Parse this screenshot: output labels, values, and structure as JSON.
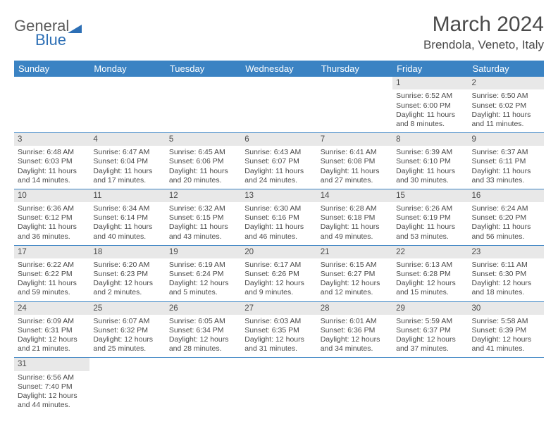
{
  "logo": {
    "text1": "General",
    "text2": "Blue"
  },
  "title": "March 2024",
  "location": "Brendola, Veneto, Italy",
  "colors": {
    "header_bg": "#3b83c3",
    "header_text": "#ffffff",
    "daynum_bg": "#e8e8e8",
    "text": "#4a4a4a",
    "row_border": "#3b83c3",
    "logo_accent": "#2d6fb5"
  },
  "day_names": [
    "Sunday",
    "Monday",
    "Tuesday",
    "Wednesday",
    "Thursday",
    "Friday",
    "Saturday"
  ],
  "weeks": [
    [
      {
        "n": "",
        "l": [
          "",
          "",
          "",
          ""
        ]
      },
      {
        "n": "",
        "l": [
          "",
          "",
          "",
          ""
        ]
      },
      {
        "n": "",
        "l": [
          "",
          "",
          "",
          ""
        ]
      },
      {
        "n": "",
        "l": [
          "",
          "",
          "",
          ""
        ]
      },
      {
        "n": "",
        "l": [
          "",
          "",
          "",
          ""
        ]
      },
      {
        "n": "1",
        "l": [
          "Sunrise: 6:52 AM",
          "Sunset: 6:00 PM",
          "Daylight: 11 hours",
          "and 8 minutes."
        ]
      },
      {
        "n": "2",
        "l": [
          "Sunrise: 6:50 AM",
          "Sunset: 6:02 PM",
          "Daylight: 11 hours",
          "and 11 minutes."
        ]
      }
    ],
    [
      {
        "n": "3",
        "l": [
          "Sunrise: 6:48 AM",
          "Sunset: 6:03 PM",
          "Daylight: 11 hours",
          "and 14 minutes."
        ]
      },
      {
        "n": "4",
        "l": [
          "Sunrise: 6:47 AM",
          "Sunset: 6:04 PM",
          "Daylight: 11 hours",
          "and 17 minutes."
        ]
      },
      {
        "n": "5",
        "l": [
          "Sunrise: 6:45 AM",
          "Sunset: 6:06 PM",
          "Daylight: 11 hours",
          "and 20 minutes."
        ]
      },
      {
        "n": "6",
        "l": [
          "Sunrise: 6:43 AM",
          "Sunset: 6:07 PM",
          "Daylight: 11 hours",
          "and 24 minutes."
        ]
      },
      {
        "n": "7",
        "l": [
          "Sunrise: 6:41 AM",
          "Sunset: 6:08 PM",
          "Daylight: 11 hours",
          "and 27 minutes."
        ]
      },
      {
        "n": "8",
        "l": [
          "Sunrise: 6:39 AM",
          "Sunset: 6:10 PM",
          "Daylight: 11 hours",
          "and 30 minutes."
        ]
      },
      {
        "n": "9",
        "l": [
          "Sunrise: 6:37 AM",
          "Sunset: 6:11 PM",
          "Daylight: 11 hours",
          "and 33 minutes."
        ]
      }
    ],
    [
      {
        "n": "10",
        "l": [
          "Sunrise: 6:36 AM",
          "Sunset: 6:12 PM",
          "Daylight: 11 hours",
          "and 36 minutes."
        ]
      },
      {
        "n": "11",
        "l": [
          "Sunrise: 6:34 AM",
          "Sunset: 6:14 PM",
          "Daylight: 11 hours",
          "and 40 minutes."
        ]
      },
      {
        "n": "12",
        "l": [
          "Sunrise: 6:32 AM",
          "Sunset: 6:15 PM",
          "Daylight: 11 hours",
          "and 43 minutes."
        ]
      },
      {
        "n": "13",
        "l": [
          "Sunrise: 6:30 AM",
          "Sunset: 6:16 PM",
          "Daylight: 11 hours",
          "and 46 minutes."
        ]
      },
      {
        "n": "14",
        "l": [
          "Sunrise: 6:28 AM",
          "Sunset: 6:18 PM",
          "Daylight: 11 hours",
          "and 49 minutes."
        ]
      },
      {
        "n": "15",
        "l": [
          "Sunrise: 6:26 AM",
          "Sunset: 6:19 PM",
          "Daylight: 11 hours",
          "and 53 minutes."
        ]
      },
      {
        "n": "16",
        "l": [
          "Sunrise: 6:24 AM",
          "Sunset: 6:20 PM",
          "Daylight: 11 hours",
          "and 56 minutes."
        ]
      }
    ],
    [
      {
        "n": "17",
        "l": [
          "Sunrise: 6:22 AM",
          "Sunset: 6:22 PM",
          "Daylight: 11 hours",
          "and 59 minutes."
        ]
      },
      {
        "n": "18",
        "l": [
          "Sunrise: 6:20 AM",
          "Sunset: 6:23 PM",
          "Daylight: 12 hours",
          "and 2 minutes."
        ]
      },
      {
        "n": "19",
        "l": [
          "Sunrise: 6:19 AM",
          "Sunset: 6:24 PM",
          "Daylight: 12 hours",
          "and 5 minutes."
        ]
      },
      {
        "n": "20",
        "l": [
          "Sunrise: 6:17 AM",
          "Sunset: 6:26 PM",
          "Daylight: 12 hours",
          "and 9 minutes."
        ]
      },
      {
        "n": "21",
        "l": [
          "Sunrise: 6:15 AM",
          "Sunset: 6:27 PM",
          "Daylight: 12 hours",
          "and 12 minutes."
        ]
      },
      {
        "n": "22",
        "l": [
          "Sunrise: 6:13 AM",
          "Sunset: 6:28 PM",
          "Daylight: 12 hours",
          "and 15 minutes."
        ]
      },
      {
        "n": "23",
        "l": [
          "Sunrise: 6:11 AM",
          "Sunset: 6:30 PM",
          "Daylight: 12 hours",
          "and 18 minutes."
        ]
      }
    ],
    [
      {
        "n": "24",
        "l": [
          "Sunrise: 6:09 AM",
          "Sunset: 6:31 PM",
          "Daylight: 12 hours",
          "and 21 minutes."
        ]
      },
      {
        "n": "25",
        "l": [
          "Sunrise: 6:07 AM",
          "Sunset: 6:32 PM",
          "Daylight: 12 hours",
          "and 25 minutes."
        ]
      },
      {
        "n": "26",
        "l": [
          "Sunrise: 6:05 AM",
          "Sunset: 6:34 PM",
          "Daylight: 12 hours",
          "and 28 minutes."
        ]
      },
      {
        "n": "27",
        "l": [
          "Sunrise: 6:03 AM",
          "Sunset: 6:35 PM",
          "Daylight: 12 hours",
          "and 31 minutes."
        ]
      },
      {
        "n": "28",
        "l": [
          "Sunrise: 6:01 AM",
          "Sunset: 6:36 PM",
          "Daylight: 12 hours",
          "and 34 minutes."
        ]
      },
      {
        "n": "29",
        "l": [
          "Sunrise: 5:59 AM",
          "Sunset: 6:37 PM",
          "Daylight: 12 hours",
          "and 37 minutes."
        ]
      },
      {
        "n": "30",
        "l": [
          "Sunrise: 5:58 AM",
          "Sunset: 6:39 PM",
          "Daylight: 12 hours",
          "and 41 minutes."
        ]
      }
    ],
    [
      {
        "n": "31",
        "l": [
          "Sunrise: 6:56 AM",
          "Sunset: 7:40 PM",
          "Daylight: 12 hours",
          "and 44 minutes."
        ]
      },
      {
        "n": "",
        "l": [
          "",
          "",
          "",
          ""
        ]
      },
      {
        "n": "",
        "l": [
          "",
          "",
          "",
          ""
        ]
      },
      {
        "n": "",
        "l": [
          "",
          "",
          "",
          ""
        ]
      },
      {
        "n": "",
        "l": [
          "",
          "",
          "",
          ""
        ]
      },
      {
        "n": "",
        "l": [
          "",
          "",
          "",
          ""
        ]
      },
      {
        "n": "",
        "l": [
          "",
          "",
          "",
          ""
        ]
      }
    ]
  ]
}
